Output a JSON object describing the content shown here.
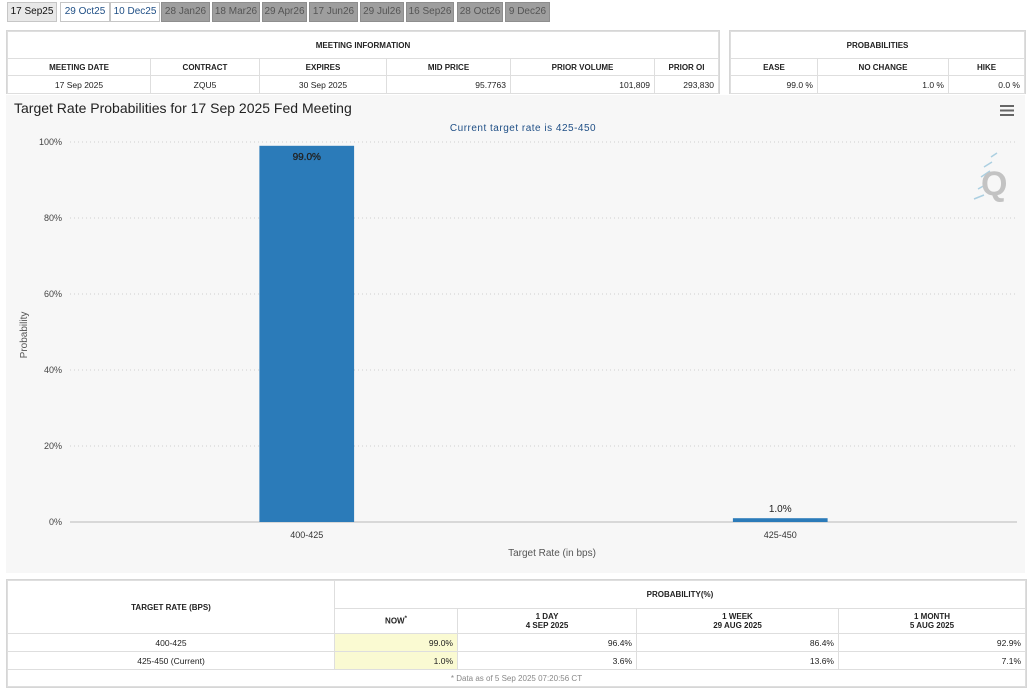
{
  "tabs": [
    {
      "label": "17 Sep25",
      "state": "sel"
    },
    {
      "label": "29 Oct25",
      "state": "open"
    },
    {
      "label": "10 Dec25",
      "state": "open"
    },
    {
      "label": "28 Jan26",
      "state": "dis"
    },
    {
      "label": "18 Mar26",
      "state": "dis"
    },
    {
      "label": "29 Apr26",
      "state": "dis"
    },
    {
      "label": "17 Jun26",
      "state": "dis"
    },
    {
      "label": "29 Jul26",
      "state": "dis"
    },
    {
      "label": "16 Sep26",
      "state": "dis"
    },
    {
      "label": "28 Oct26",
      "state": "dis"
    },
    {
      "label": "9 Dec26",
      "state": "dis"
    }
  ],
  "meeting_info": {
    "title": "MEETING INFORMATION",
    "headers": [
      "MEETING DATE",
      "CONTRACT",
      "EXPIRES",
      "MID PRICE",
      "PRIOR VOLUME",
      "PRIOR OI"
    ],
    "values": [
      "17 Sep 2025",
      "ZQU5",
      "30 Sep 2025",
      "95.7763",
      "101,809",
      "293,830"
    ]
  },
  "probabilities": {
    "title": "PROBABILITIES",
    "headers": [
      "EASE",
      "NO CHANGE",
      "HIKE"
    ],
    "values": [
      "99.0 %",
      "1.0 %",
      "0.0 %"
    ]
  },
  "chart_data": {
    "type": "bar",
    "title": "Target Rate Probabilities for 17 Sep 2025 Fed Meeting",
    "subtitle": "Current target rate is 425-450",
    "categories": [
      "400-425",
      "425-450"
    ],
    "values": [
      99.0,
      1.0
    ],
    "data_labels": [
      "99.0%",
      "1.0%"
    ],
    "xlabel": "Target Rate (in bps)",
    "ylabel": "Probability",
    "ylim": [
      0,
      100
    ],
    "yticks": [
      "0%",
      "20%",
      "40%",
      "60%",
      "80%",
      "100%"
    ],
    "bar_color": "#2b7bb9",
    "grid": true
  },
  "history": {
    "col_target": "TARGET RATE (BPS)",
    "col_prob": "PROBABILITY(%)",
    "now": "NOW",
    "now_mark": "*",
    "day": {
      "label": "1 DAY",
      "date": "4 SEP 2025"
    },
    "week": {
      "label": "1 WEEK",
      "date": "29 AUG 2025"
    },
    "month": {
      "label": "1 MONTH",
      "date": "5 AUG 2025"
    },
    "rows": [
      {
        "rate": "400-425",
        "now": "99.0%",
        "day": "96.4%",
        "week": "86.4%",
        "month": "92.9%"
      },
      {
        "rate": "425-450 (Current)",
        "now": "1.0%",
        "day": "3.6%",
        "week": "13.6%",
        "month": "7.1%"
      }
    ],
    "footnote": "* Data as of 5 Sep 2025 07:20:56 CT"
  },
  "icons": {
    "menu": "hamburger-menu-icon",
    "logo": "quikstrike-q-logo"
  }
}
